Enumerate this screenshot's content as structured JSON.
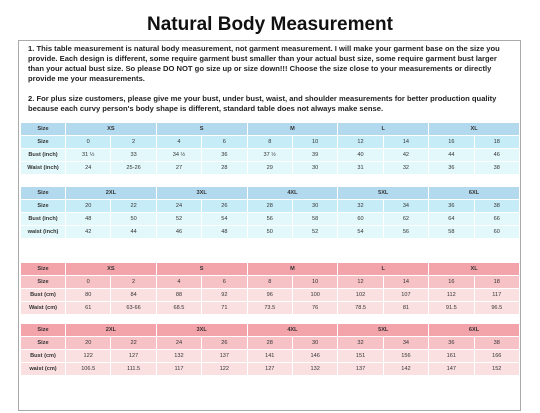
{
  "header": {
    "title": "Natural Body Measurement"
  },
  "notes": [
    "1. This table measurement is natural body measurement, not garment measurement. I will make your garment base on the size you provide. Each design is different, some require garment bust smaller than your actual bust size, some require garment bust larger than your actual bust size. So please DO NOT go size up or size down!!! Choose the size close to your measurements or directly provide me your measurements.",
    "2. For plus size customers, please give me your bust, under bust, waist, and shoulder measurements for better production quality because each curvy person's body shape is different, standard table does not always make sense."
  ],
  "tables": [
    {
      "rows": [
        [
          "Size",
          "XS",
          "S",
          "M",
          "L",
          "XL"
        ],
        [
          "Size",
          "0",
          "2",
          "4",
          "6",
          "8",
          "10",
          "12",
          "14",
          "16",
          "18"
        ],
        [
          "Bust (inch)",
          "31 ½",
          "33",
          "34 ½",
          "36",
          "37 ½",
          "39",
          "40",
          "42",
          "44",
          "46"
        ],
        [
          "Waist (inch)",
          "24",
          "25-26",
          "27",
          "28",
          "29",
          "30",
          "31",
          "32",
          "36",
          "38"
        ]
      ]
    },
    {
      "rows": [
        [
          "Size",
          "2XL",
          "3XL",
          "4XL",
          "5XL",
          "6XL"
        ],
        [
          "Size",
          "20",
          "22",
          "24",
          "26",
          "28",
          "30",
          "32",
          "34",
          "36",
          "38"
        ],
        [
          "Bust (inch)",
          "48",
          "50",
          "52",
          "54",
          "56",
          "58",
          "60",
          "62",
          "64",
          "66"
        ],
        [
          "waist (inch)",
          "42",
          "44",
          "46",
          "48",
          "50",
          "52",
          "54",
          "56",
          "58",
          "60"
        ]
      ]
    },
    {
      "rows": [
        [
          "Size",
          "XS",
          "S",
          "M",
          "L",
          "XL"
        ],
        [
          "Size",
          "0",
          "2",
          "4",
          "6",
          "8",
          "10",
          "12",
          "14",
          "16",
          "18"
        ],
        [
          "Bust (cm)",
          "80",
          "84",
          "88",
          "92",
          "96",
          "100",
          "102",
          "107",
          "112",
          "117"
        ],
        [
          "Waist (cm)",
          "61",
          "63-66",
          "68.5",
          "71",
          "73.5",
          "76",
          "78.5",
          "81",
          "91.5",
          "96.5"
        ]
      ]
    },
    {
      "rows": [
        [
          "Size",
          "2XL",
          "3XL",
          "4XL",
          "5XL",
          "6XL"
        ],
        [
          "Size",
          "20",
          "22",
          "24",
          "26",
          "28",
          "30",
          "32",
          "34",
          "36",
          "38"
        ],
        [
          "Bust (cm)",
          "122",
          "127",
          "132",
          "137",
          "141",
          "146",
          "151",
          "156",
          "161",
          "166"
        ],
        [
          "waist (cm)",
          "106.5",
          "111.5",
          "117",
          "122",
          "127",
          "132",
          "137",
          "142",
          "147",
          "152"
        ]
      ]
    }
  ]
}
